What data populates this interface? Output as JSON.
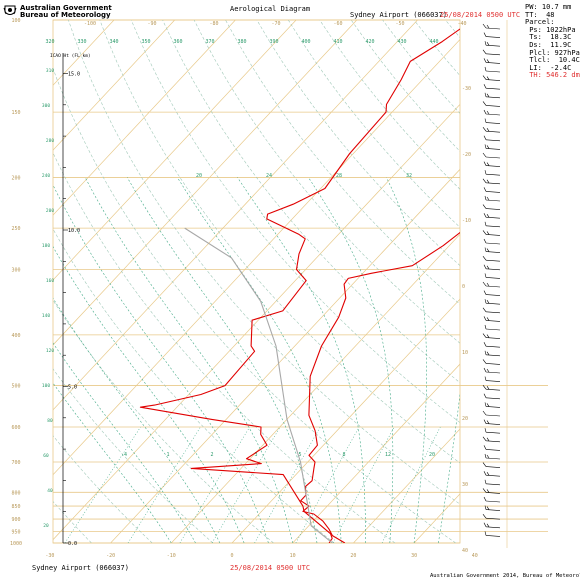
{
  "header": {
    "org_line1": "Australian Government",
    "org_line2": "Bureau of Meteorology",
    "title": "Aerological Diagram",
    "station": "Sydney Airport (066037)",
    "datetime": "25/08/2014 0500 UTC"
  },
  "footer": {
    "station": "Sydney Airport (066037)",
    "datetime": "25/08/2014 0500 UTC",
    "copyright": "Australian Government 2014, Bureau of Meteorology"
  },
  "params": {
    "pw": "PW: 10.7 mm",
    "tt": "TT:  48",
    "parcel": "Parcel:",
    "ps": " Ps: 1022hPa",
    "ts": " Ts:  18.3C",
    "ds": " Ds:  11.9C",
    "plcl": " Plcl: 927hPa",
    "tlcl": " Tlcl:  10.4C",
    "li": " LI:  -2.4C",
    "th": " TH: 546.2 dm"
  },
  "colors": {
    "isobar": "#e8c98a",
    "isotherm": "#e8c98a",
    "dry_adiabat": "#a0c8b8",
    "sat_adiabat": "#44aa88",
    "mixing_ratio": "#44aa88",
    "temperature": "#e00000",
    "dewpoint": "#e00000",
    "parcel": "#a8a8a8",
    "label_green": "#2a9a6a",
    "label_tan": "#b89858"
  },
  "chart_data": {
    "type": "line",
    "title": "Aerological Diagram",
    "xlabel": "",
    "ylabel": "",
    "altitude_axis_label": "ICAO Ht (FL km)",
    "xlim": [
      -30,
      40
    ],
    "ylim": [
      1000,
      100
    ],
    "x_tick_labels": [
      "-30",
      "-20",
      "-10",
      "0",
      "10",
      "20",
      "30",
      "40"
    ],
    "top_x_tick_labels": [
      "-100",
      "-90",
      "-80",
      "-70",
      "-60",
      "-50",
      "-40"
    ],
    "pressure_levels": [
      1000,
      950,
      900,
      850,
      800,
      700,
      600,
      500,
      400,
      300,
      250,
      200,
      150,
      100
    ],
    "pressure_labels": [
      "1000",
      "950",
      "900",
      "850",
      "800",
      "700",
      "600",
      "500",
      "400",
      "300",
      "250",
      "200",
      "150",
      "100"
    ],
    "altitude_km_labels": [
      "0.0",
      "5.0",
      "10.0",
      "15.0"
    ],
    "flight_level_labels": [
      "20",
      "40",
      "60",
      "80",
      "100",
      "120",
      "140",
      "160",
      "180",
      "200",
      "240",
      "280",
      "300",
      "310"
    ],
    "dry_adiabat_labels": [
      "320",
      "330",
      "340",
      "350",
      "360",
      "370",
      "380",
      "390",
      "400",
      "410",
      "420",
      "430",
      "440"
    ],
    "sat_adiabat_labels": [
      "20",
      "24",
      "28",
      "32"
    ],
    "mixing_ratio_labels": [
      ".4",
      "1",
      "2",
      "3",
      "5",
      "8",
      "12",
      "20"
    ],
    "right_isotherm_labels": [
      "-30",
      "-20",
      "-10",
      "0",
      "10",
      "20",
      "30",
      "40"
    ],
    "series": [
      {
        "points": [
          [
            18.6,
            1000
          ],
          [
            15.4,
            968
          ],
          [
            13.8,
            940
          ],
          [
            11.6,
            908
          ],
          [
            9.0,
            880
          ],
          [
            6.8,
            870
          ],
          [
            7.0,
            850
          ],
          [
            4.8,
            830
          ],
          [
            4.8,
            810
          ],
          [
            3.4,
            780
          ],
          [
            3.6,
            760
          ],
          [
            2.0,
            720
          ],
          [
            1.2,
            700
          ],
          [
            -0.8,
            680
          ],
          [
            -1.0,
            650
          ],
          [
            -3.6,
            610
          ],
          [
            -7.0,
            570
          ],
          [
            -12.8,
            480
          ],
          [
            -15.6,
            420
          ],
          [
            -17.2,
            370
          ],
          [
            -19.0,
            340
          ],
          [
            -21.4,
            320
          ],
          [
            -21.6,
            312
          ],
          [
            -18.6,
            305
          ],
          [
            -13.0,
            295
          ],
          [
            -11.0,
            270
          ],
          [
            -9.5,
            240
          ],
          [
            -8.9,
            210
          ],
          [
            -9.2,
            195
          ],
          [
            -7.9,
            180
          ],
          [
            -6.1,
            170
          ],
          [
            -4.8,
            150
          ],
          [
            -4.5,
            135
          ],
          [
            -3.5,
            124
          ],
          [
            -4.5,
            112
          ],
          [
            -3.2,
            105
          ],
          [
            -2.6,
            100
          ]
        ]
      },
      {
        "points": [
          [
            16.0,
            1000
          ],
          [
            15.8,
            980
          ],
          [
            14.8,
            960
          ],
          [
            7.0,
            870
          ],
          [
            6.0,
            850
          ],
          [
            -2.1,
            740
          ],
          [
            -18.2,
            720
          ],
          [
            -7.4,
            705
          ],
          [
            -10.6,
            690
          ],
          [
            -9.3,
            650
          ],
          [
            -12.0,
            620
          ],
          [
            -13.1,
            600
          ],
          [
            -22.5,
            580
          ],
          [
            -36.0,
            550
          ],
          [
            -34.0,
            545
          ],
          [
            -28.0,
            520
          ],
          [
            -25.4,
            500
          ],
          [
            -25.8,
            430
          ],
          [
            -27.2,
            420
          ],
          [
            -31.0,
            375
          ],
          [
            -27.4,
            360
          ],
          [
            -28.2,
            315
          ],
          [
            -31.5,
            300
          ],
          [
            -33.5,
            280
          ],
          [
            -34.8,
            262
          ],
          [
            -36.5,
            257
          ],
          [
            -44.2,
            240
          ],
          [
            -44.8,
            235
          ],
          [
            -42.1,
            225
          ],
          [
            -39.3,
            210
          ],
          [
            -40.6,
            180
          ],
          [
            -41.0,
            150
          ],
          [
            -42.1,
            145
          ],
          [
            -43.5,
            130
          ],
          [
            -44.8,
            120
          ],
          [
            -42.6,
            110
          ],
          [
            -40.9,
            100
          ]
        ]
      },
      {
        "points": [
          [
            18.3,
            1022
          ],
          [
            10.4,
            927
          ],
          [
            -1.2,
            700
          ],
          [
            -10.0,
            580
          ],
          [
            -23.1,
            420
          ],
          [
            -32.5,
            345
          ],
          [
            -44.0,
            285
          ],
          [
            -56.3,
            250
          ]
        ]
      }
    ]
  }
}
